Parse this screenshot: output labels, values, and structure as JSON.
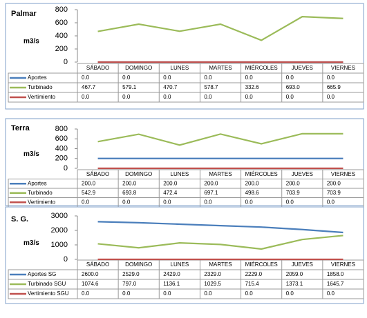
{
  "chart_data": [
    {
      "type": "line",
      "title": "Palmar",
      "ylabel": "m3/s",
      "ylim": [
        0,
        800
      ],
      "yticks": [
        0,
        200,
        400,
        600,
        800
      ],
      "categories": [
        "SÁBADO",
        "DOMINGO",
        "LUNES",
        "MARTES",
        "MIÉRCOLES",
        "JUEVES",
        "VIERNES"
      ],
      "series": [
        {
          "name": "Aportes",
          "color": "#4a7ebb",
          "values": [
            0,
            0,
            0,
            0,
            0,
            0,
            0
          ],
          "value_labels": [
            "0.0",
            "0.0",
            "0.0",
            "0.0",
            "0.0",
            "0.0",
            "0.0"
          ]
        },
        {
          "name": "Turbinado",
          "color": "#9bbb59",
          "values": [
            467.7,
            579.1,
            470.7,
            578.7,
            332.6,
            693.0,
            665.9
          ],
          "value_labels": [
            "467.7",
            "579.1",
            "470.7",
            "578.7",
            "332.6",
            "693.0",
            "665.9"
          ]
        },
        {
          "name": "Vertimiento",
          "color": "#c0504d",
          "values": [
            0,
            0,
            0,
            0,
            0,
            0,
            0
          ],
          "value_labels": [
            "0.0",
            "0.0",
            "0.0",
            "0.0",
            "0.0",
            "0.0",
            "0.0"
          ]
        }
      ]
    },
    {
      "type": "line",
      "title": "Terra",
      "ylabel": "m3/s",
      "ylim": [
        0,
        800
      ],
      "yticks": [
        0,
        200,
        400,
        600,
        800
      ],
      "categories": [
        "SÁBADO",
        "DOMINGO",
        "LUNES",
        "MARTES",
        "MIÉRCOLES",
        "JUEVES",
        "VIERNES"
      ],
      "series": [
        {
          "name": "Aportes",
          "color": "#4a7ebb",
          "values": [
            200,
            200,
            200,
            200,
            200,
            200,
            200
          ],
          "value_labels": [
            "200.0",
            "200.0",
            "200.0",
            "200.0",
            "200.0",
            "200.0",
            "200.0"
          ]
        },
        {
          "name": "Turbinado",
          "color": "#9bbb59",
          "values": [
            542.9,
            693.8,
            472.4,
            697.1,
            498.6,
            703.9,
            703.9
          ],
          "value_labels": [
            "542.9",
            "693.8",
            "472.4",
            "697.1",
            "498.6",
            "703.9",
            "703.9"
          ]
        },
        {
          "name": "Vertimiento",
          "color": "#c0504d",
          "values": [
            0,
            0,
            0,
            0,
            0,
            0,
            0
          ],
          "value_labels": [
            "0.0",
            "0.0",
            "0.0",
            "0.0",
            "0.0",
            "0.0",
            "0.0"
          ]
        }
      ]
    },
    {
      "type": "line",
      "title": "S. G.",
      "ylabel": "m3/s",
      "ylim": [
        0,
        3000
      ],
      "yticks": [
        0,
        1000,
        2000,
        3000
      ],
      "categories": [
        "SÁBADO",
        "DOMINGO",
        "LUNES",
        "MARTES",
        "MIÉRCOLES",
        "JUEVES",
        "VIERNES"
      ],
      "series": [
        {
          "name": "Aportes SG",
          "color": "#4a7ebb",
          "values": [
            2600,
            2529,
            2429,
            2329,
            2229,
            2059,
            1858
          ],
          "value_labels": [
            "2600.0",
            "2529.0",
            "2429.0",
            "2329.0",
            "2229.0",
            "2059.0",
            "1858.0"
          ]
        },
        {
          "name": "Turbinado SGU",
          "color": "#9bbb59",
          "values": [
            1074.6,
            797,
            1136.1,
            1029.5,
            715.4,
            1373.1,
            1645.7
          ],
          "value_labels": [
            "1074.6",
            "797.0",
            "1136.1",
            "1029.5",
            "715.4",
            "1373.1",
            "1645.7"
          ]
        },
        {
          "name": "Vertimiento SGU",
          "color": "#c0504d",
          "values": [
            0,
            0,
            0,
            0,
            0,
            0,
            0
          ],
          "value_labels": [
            "0.0",
            "0.0",
            "0.0",
            "0.0",
            "0.0",
            "0.0",
            "0.0"
          ]
        }
      ]
    }
  ]
}
